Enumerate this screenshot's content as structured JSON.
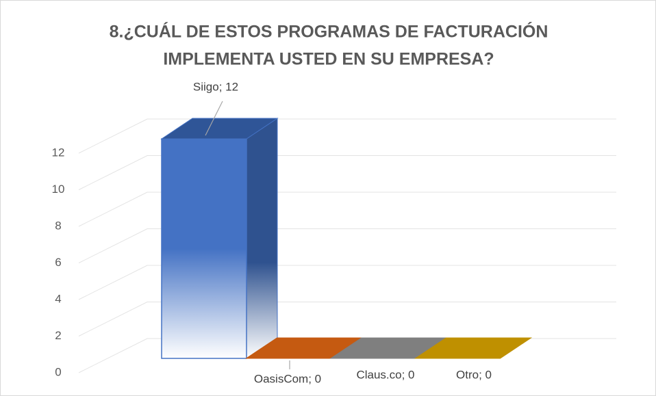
{
  "chart_data": {
    "type": "bar3d",
    "title": [
      "8.¿CUÁL DE ESTOS PROGRAMAS DE FACTURACIÓN",
      "IMPLEMENTA USTED EN SU EMPRESA?"
    ],
    "categories": [
      "Siigo",
      "OasisCom",
      "Claus.co",
      "Otro"
    ],
    "values": [
      12,
      0,
      0,
      0
    ],
    "value_labels": [
      "Siigo; 12",
      "OasisCom; 0",
      "Claus.co; 0",
      "Otro; 0"
    ],
    "colors": [
      "#4472c4",
      "#c55a11",
      "#7f7f7f",
      "#bf9000"
    ],
    "ylim": [
      0,
      14
    ],
    "yticks": [
      0,
      2,
      4,
      6,
      8,
      10,
      12
    ],
    "grid": true
  }
}
